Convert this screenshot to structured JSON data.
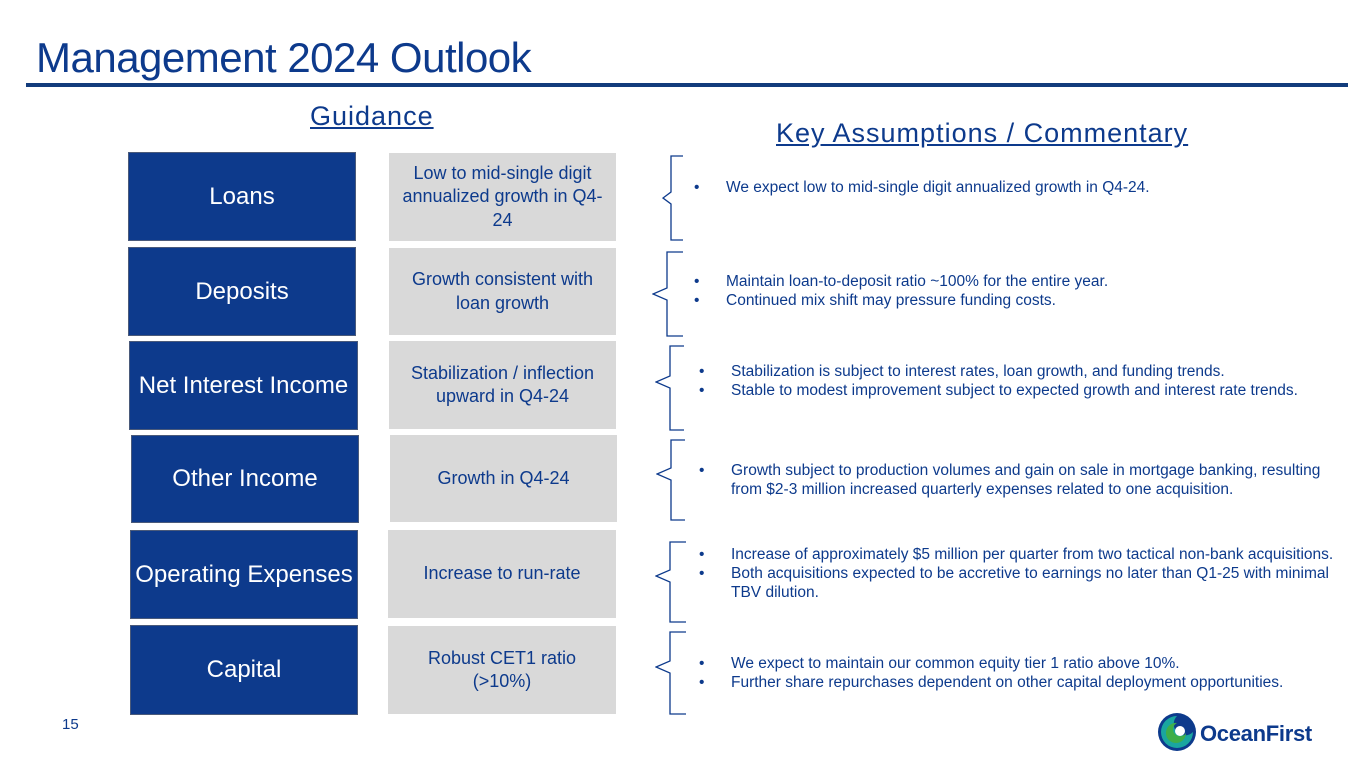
{
  "title": "Management 2024 Outlook",
  "headers": {
    "guidance": "Guidance",
    "key": "Key Assumptions / Commentary"
  },
  "rows": [
    {
      "category": "Loans",
      "guidance": "Low to mid-single digit annualized growth in Q4-24",
      "commentary": [
        "We expect low to mid-single digit annualized growth in Q4-24."
      ]
    },
    {
      "category": "Deposits",
      "guidance": "Growth consistent with loan growth",
      "commentary": [
        "Maintain loan-to-deposit ratio ~100% for the entire year.",
        "Continued mix shift may pressure funding costs."
      ]
    },
    {
      "category": "Net Interest Income",
      "guidance": "Stabilization / inflection upward in Q4-24",
      "commentary": [
        "Stabilization is subject to interest rates, loan growth, and funding trends.",
        "Stable to modest improvement subject to expected growth and interest rate trends."
      ]
    },
    {
      "category": "Other Income",
      "guidance": "Growth in Q4-24",
      "commentary": [
        "Growth subject to production volumes and gain on sale in mortgage banking, resulting from $2-3 million increased quarterly expenses related to one acquisition."
      ]
    },
    {
      "category": "Operating Expenses",
      "guidance": "Increase to run-rate",
      "commentary": [
        "Increase of approximately $5 million per quarter from two tactical non-bank acquisitions.",
        "Both acquisitions expected to be accretive to earnings no later than Q1-25 with minimal TBV dilution."
      ]
    },
    {
      "category": "Capital",
      "guidance": "Robust CET1 ratio (>10%)",
      "commentary": [
        "We expect to maintain our common equity tier 1 ratio above 10%.",
        "Further share repurchases dependent on other capital deployment opportunities."
      ]
    }
  ],
  "page_number": "15",
  "logo": {
    "text": "OceanFirst",
    "colors": {
      "navy": "#0d3a8c",
      "teal": "#1aa6a0",
      "green": "#3fae49"
    }
  }
}
